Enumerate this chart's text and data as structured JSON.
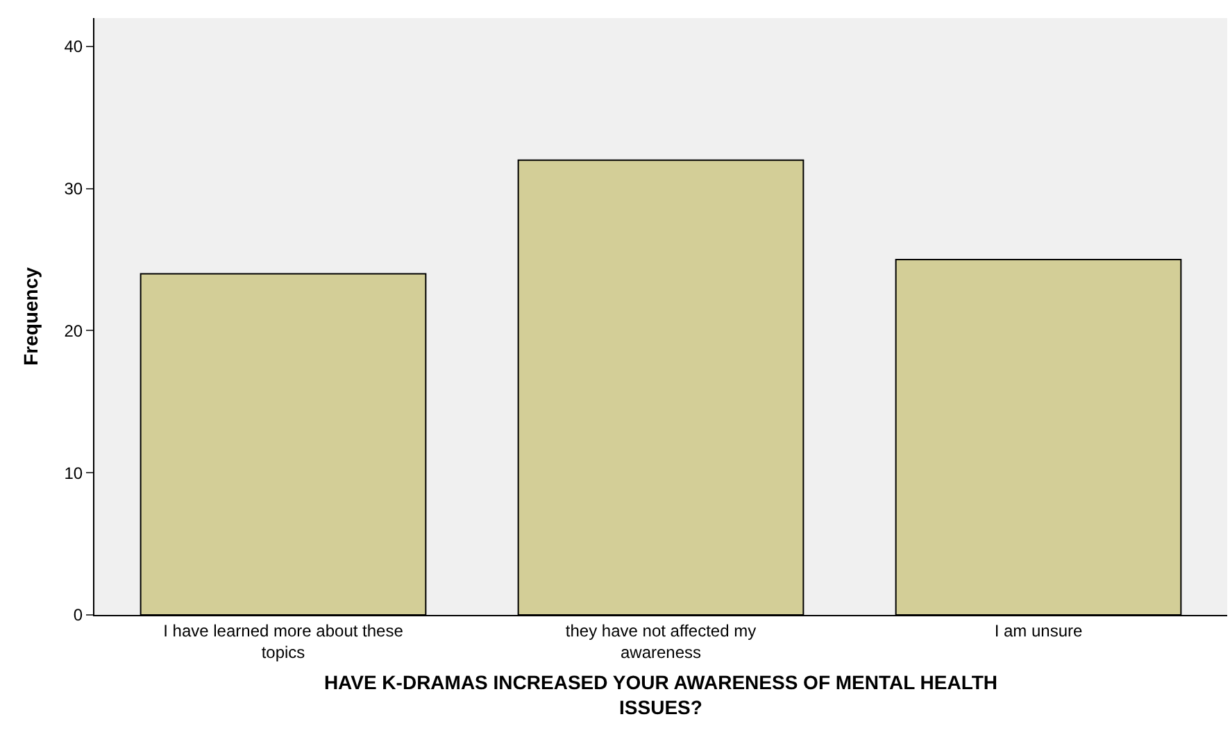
{
  "chart_data": {
    "type": "bar",
    "xlabel": "HAVE K-DRAMAS INCREASED YOUR AWARENESS OF MENTAL HEALTH ISSUES?",
    "ylabel": "Frequency",
    "categories": [
      "I have learned more about these topics",
      "they have not affected my awareness",
      "I am unsure"
    ],
    "values": [
      24,
      32,
      25
    ],
    "color": "#d3ce97",
    "ylim": [
      0,
      42
    ],
    "yticks": [
      0,
      10,
      20,
      30,
      40
    ],
    "grid": false,
    "legend": false
  }
}
